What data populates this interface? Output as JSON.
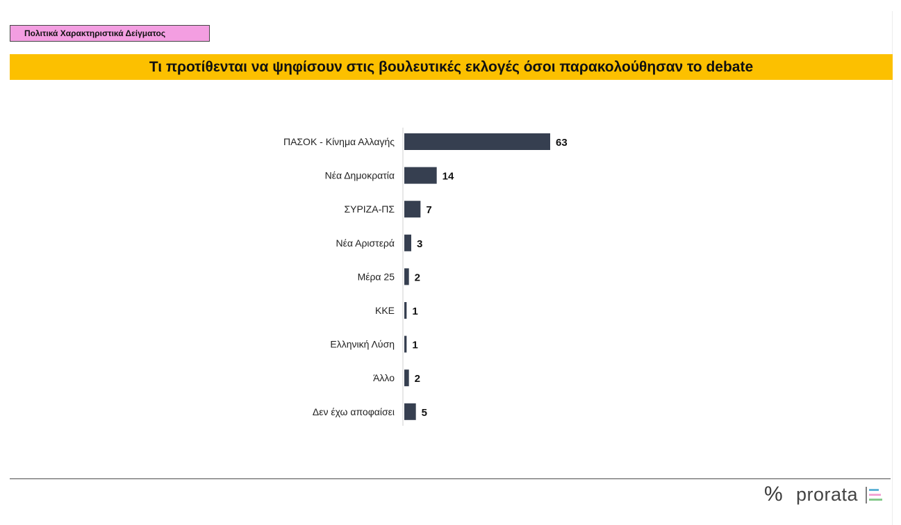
{
  "header": {
    "section_tag": "Πολιτικά Χαρακτηριστικά Δείγματος",
    "title": "Τι προτίθενται να ψηφίσουν στις βουλευτικές εκλογές όσοι παρακολούθησαν το debate"
  },
  "footer": {
    "brand_percent": "%",
    "brand_name": "prorata",
    "brand_mark_colors": [
      "#7e7e7e",
      "#5fb3d6",
      "#f3a6d5",
      "#86c98b"
    ]
  },
  "colors": {
    "section_tag_bg": "#f39ee1",
    "title_band_bg": "#fcc000",
    "bar": "#363f50"
  },
  "chart_data": {
    "type": "bar",
    "orientation": "horizontal",
    "categories": [
      "ΠΑΣΟΚ - Κίνημα Αλλαγής",
      "Νέα Δημοκρατία",
      "ΣΥΡΙΖΑ-ΠΣ",
      "Νέα Αριστερά",
      "Μέρα 25",
      "ΚΚΕ",
      "Ελληνική Λύση",
      "Άλλο",
      "Δεν έχω αποφαίσει"
    ],
    "values": [
      63,
      14,
      7,
      3,
      2,
      1,
      1,
      2,
      5
    ],
    "data_labels": [
      "63",
      "14",
      "7",
      "3",
      "2",
      "1",
      "1",
      "2",
      "5"
    ],
    "title": "",
    "xlabel": "",
    "ylabel": "",
    "xlim": [
      0,
      63
    ],
    "grid": false,
    "legend": "none"
  }
}
